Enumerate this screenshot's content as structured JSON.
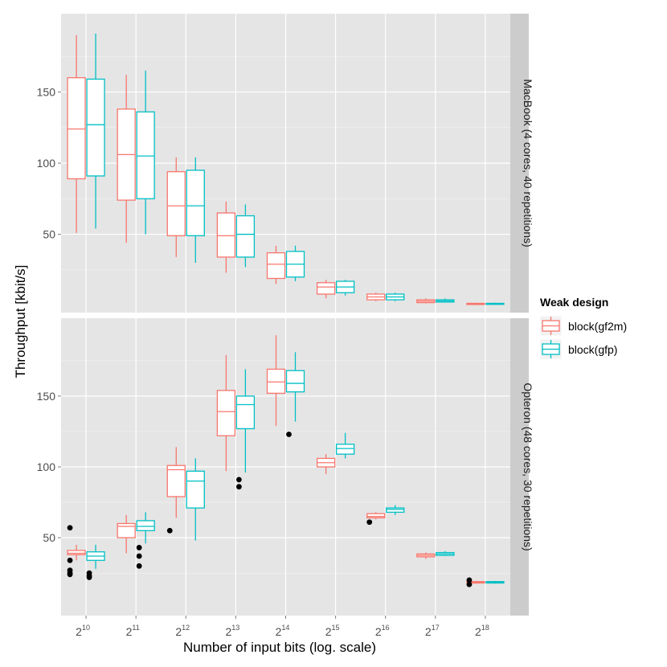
{
  "chart_data": {
    "type": "box",
    "xlabel": "Number of input bits (log. scale)",
    "ylabel": "Throughput [kbit/s]",
    "x_base": "2",
    "x_exponents": [
      "10",
      "11",
      "12",
      "13",
      "14",
      "15",
      "16",
      "17",
      "18"
    ],
    "ylim": [
      -5,
      205
    ],
    "yticks": [
      50,
      100,
      150
    ],
    "legend": {
      "title": "Weak design",
      "position": "right",
      "entries": [
        {
          "label": "block(gf2m)",
          "color": "#f8766d"
        },
        {
          "label": "block(gfp)",
          "color": "#00bfc4"
        }
      ]
    },
    "panels": [
      {
        "strip": "MacBook (4 cores, 40 repetitions)",
        "series": [
          {
            "name": "block(gf2m)",
            "boxes": [
              {
                "x": 10,
                "lower": 51,
                "q1": 89,
                "median": 124,
                "q3": 160,
                "upper": 190,
                "outliers": []
              },
              {
                "x": 11,
                "lower": 44,
                "q1": 74,
                "median": 106,
                "q3": 138,
                "upper": 162,
                "outliers": []
              },
              {
                "x": 12,
                "lower": 34,
                "q1": 49,
                "median": 70,
                "q3": 94,
                "upper": 104,
                "outliers": []
              },
              {
                "x": 13,
                "lower": 23,
                "q1": 34,
                "median": 49,
                "q3": 65,
                "upper": 73,
                "outliers": []
              },
              {
                "x": 14,
                "lower": 15,
                "q1": 19,
                "median": 29,
                "q3": 37,
                "upper": 42,
                "outliers": []
              },
              {
                "x": 15,
                "lower": 5,
                "q1": 8,
                "median": 13,
                "q3": 16,
                "upper": 18,
                "outliers": []
              },
              {
                "x": 16,
                "lower": 3,
                "q1": 4,
                "median": 6,
                "q3": 8,
                "upper": 9,
                "outliers": []
              },
              {
                "x": 17,
                "lower": 1.5,
                "q1": 2,
                "median": 3,
                "q3": 4,
                "upper": 5,
                "outliers": []
              },
              {
                "x": 18,
                "lower": 0.5,
                "q1": 0.7,
                "median": 1,
                "q3": 1.5,
                "upper": 2,
                "outliers": []
              }
            ]
          },
          {
            "name": "block(gfp)",
            "boxes": [
              {
                "x": 10,
                "lower": 54,
                "q1": 91,
                "median": 127,
                "q3": 159,
                "upper": 191,
                "outliers": []
              },
              {
                "x": 11,
                "lower": 50,
                "q1": 75,
                "median": 105,
                "q3": 136,
                "upper": 165,
                "outliers": []
              },
              {
                "x": 12,
                "lower": 30,
                "q1": 49,
                "median": 70,
                "q3": 95,
                "upper": 104,
                "outliers": []
              },
              {
                "x": 13,
                "lower": 27,
                "q1": 34,
                "median": 50,
                "q3": 63,
                "upper": 71,
                "outliers": []
              },
              {
                "x": 14,
                "lower": 17,
                "q1": 20,
                "median": 29,
                "q3": 38,
                "upper": 42,
                "outliers": []
              },
              {
                "x": 15,
                "lower": 7,
                "q1": 9,
                "median": 13,
                "q3": 17,
                "upper": 18,
                "outliers": []
              },
              {
                "x": 16,
                "lower": 3,
                "q1": 4,
                "median": 6,
                "q3": 8,
                "upper": 9,
                "outliers": []
              },
              {
                "x": 17,
                "lower": 2,
                "q1": 2.4,
                "median": 3.2,
                "q3": 4,
                "upper": 5,
                "outliers": []
              },
              {
                "x": 18,
                "lower": 0.5,
                "q1": 0.8,
                "median": 1.1,
                "q3": 1.5,
                "upper": 2,
                "outliers": []
              }
            ]
          }
        ]
      },
      {
        "strip": "Opteron (48 cores, 30 repetitions)",
        "series": [
          {
            "name": "block(gf2m)",
            "boxes": [
              {
                "x": 10,
                "lower": 34,
                "q1": 38,
                "median": 39,
                "q3": 41,
                "upper": 45,
                "outliers": [
                  57,
                  34,
                  27,
                  25,
                  24
                ]
              },
              {
                "x": 11,
                "lower": 39,
                "q1": 50,
                "median": 58,
                "q3": 60,
                "upper": 66,
                "outliers": []
              },
              {
                "x": 12,
                "lower": 64,
                "q1": 79,
                "median": 98,
                "q3": 101,
                "upper": 114,
                "outliers": [
                  55
                ]
              },
              {
                "x": 13,
                "lower": 97,
                "q1": 122,
                "median": 139,
                "q3": 154,
                "upper": 179,
                "outliers": []
              },
              {
                "x": 14,
                "lower": 129,
                "q1": 152,
                "median": 160,
                "q3": 169,
                "upper": 193,
                "outliers": []
              },
              {
                "x": 15,
                "lower": 95,
                "q1": 100,
                "median": 103,
                "q3": 106,
                "upper": 109,
                "outliers": []
              },
              {
                "x": 16,
                "lower": 63,
                "q1": 64,
                "median": 65,
                "q3": 67,
                "upper": 68,
                "outliers": [
                  61
                ]
              },
              {
                "x": 17,
                "lower": 35,
                "q1": 36.5,
                "median": 37.5,
                "q3": 38.5,
                "upper": 39.5,
                "outliers": []
              },
              {
                "x": 18,
                "lower": 17.5,
                "q1": 18,
                "median": 18.5,
                "q3": 19,
                "upper": 19.5,
                "outliers": [
                  20,
                  17
                ]
              }
            ]
          },
          {
            "name": "block(gfp)",
            "boxes": [
              {
                "x": 10,
                "lower": 28,
                "q1": 34,
                "median": 37,
                "q3": 40,
                "upper": 45,
                "outliers": [
                  25,
                  23,
                  22
                ]
              },
              {
                "x": 11,
                "lower": 46,
                "q1": 55,
                "median": 58,
                "q3": 62,
                "upper": 68,
                "outliers": [
                  43,
                  37,
                  30
                ]
              },
              {
                "x": 12,
                "lower": 48,
                "q1": 71,
                "median": 90,
                "q3": 97,
                "upper": 106,
                "outliers": []
              },
              {
                "x": 13,
                "lower": 96,
                "q1": 127,
                "median": 144,
                "q3": 150,
                "upper": 169,
                "outliers": [
                  91,
                  86
                ]
              },
              {
                "x": 14,
                "lower": 132,
                "q1": 153,
                "median": 159,
                "q3": 168,
                "upper": 181,
                "outliers": [
                  123
                ]
              },
              {
                "x": 15,
                "lower": 106,
                "q1": 109,
                "median": 113,
                "q3": 116,
                "upper": 124,
                "outliers": []
              },
              {
                "x": 16,
                "lower": 66,
                "q1": 68,
                "median": 70,
                "q3": 71,
                "upper": 73,
                "outliers": []
              },
              {
                "x": 17,
                "lower": 37,
                "q1": 37.5,
                "median": 38.5,
                "q3": 39.5,
                "upper": 40.5,
                "outliers": []
              },
              {
                "x": 18,
                "lower": 17.5,
                "q1": 18,
                "median": 18.5,
                "q3": 19,
                "upper": 19.5,
                "outliers": []
              }
            ]
          }
        ]
      }
    ]
  }
}
